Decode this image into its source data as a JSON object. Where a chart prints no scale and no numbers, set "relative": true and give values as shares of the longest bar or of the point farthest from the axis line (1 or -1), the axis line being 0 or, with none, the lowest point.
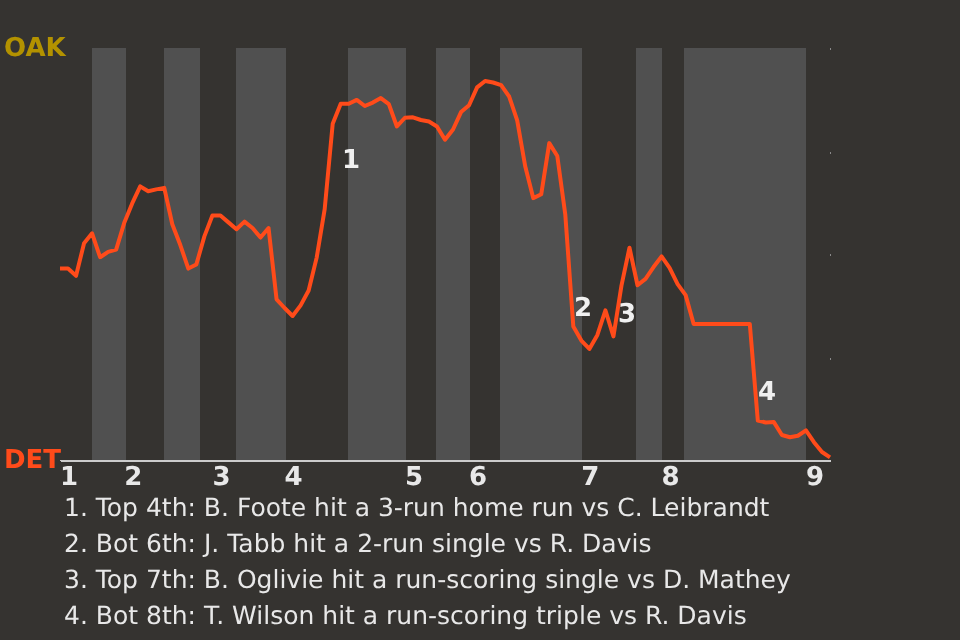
{
  "chart_data": {
    "type": "line",
    "relative": true,
    "categories": [
      null,
      "1",
      null,
      null,
      null,
      null,
      null,
      null,
      null,
      "2",
      null,
      null,
      null,
      null,
      null,
      null,
      null,
      null,
      null,
      null,
      "3",
      null,
      null,
      null,
      null,
      null,
      null,
      null,
      null,
      "4",
      null,
      null,
      null,
      null,
      null,
      null,
      null,
      null,
      null,
      null,
      null,
      null,
      null,
      null,
      "5",
      null,
      null,
      null,
      null,
      null,
      null,
      null,
      "6",
      null,
      null,
      null,
      null,
      null,
      null,
      null,
      null,
      null,
      null,
      null,
      null,
      null,
      "7",
      null,
      null,
      null,
      null,
      null,
      null,
      null,
      null,
      null,
      "8",
      null,
      null,
      null,
      null,
      null,
      null,
      null,
      null,
      null,
      null,
      null,
      null,
      null,
      null,
      null,
      null,
      null,
      "9",
      null,
      null
    ],
    "series": [
      {
        "color": "#ff4b1a",
        "values": [
          0.505,
          0.505,
          0.486,
          0.572,
          0.598,
          0.535,
          0.549,
          0.555,
          0.625,
          0.677,
          0.722,
          0.709,
          0.714,
          0.718,
          0.622,
          0.567,
          0.505,
          0.516,
          0.59,
          0.645,
          0.645,
          0.627,
          0.609,
          0.629,
          0.612,
          0.587,
          0.612,
          0.424,
          0.401,
          0.38,
          0.408,
          0.447,
          0.534,
          0.662,
          0.887,
          0.94,
          0.94,
          0.95,
          0.934,
          0.943,
          0.955,
          0.939,
          0.88,
          0.903,
          0.904,
          0.897,
          0.893,
          0.88,
          0.845,
          0.872,
          0.918,
          0.936,
          0.983,
          1,
          0.996,
          0.989,
          0.959,
          0.896,
          0.775,
          0.691,
          0.701,
          0.836,
          0.802,
          0.647,
          0.352,
          0.315,
          0.293,
          0.33,
          0.395,
          0.326,
          0.46,
          0.56,
          0.461,
          0.478,
          0.509,
          0.537,
          0.507,
          0.464,
          0.435,
          0.359,
          0.359,
          0.359,
          0.359,
          0.359,
          0.359,
          0.359,
          0.359,
          0.104,
          0.099,
          0.1,
          0.066,
          0.06,
          0.064,
          0.078,
          0.047,
          0.021,
          0.007
        ]
      }
    ],
    "grid": "y",
    "annotations": [
      "OAK",
      "DET",
      "1",
      "2",
      "3",
      "4",
      "1. Top 4th: B. Foote hit a 3-run home run vs C. Leibrandt",
      "2. Bot 6th: J. Tabb hit a 2-run single vs R. Davis",
      "3. Top 7th: B. Oglivie hit a run-scoring single vs D. Mathey",
      "4. Bot 8th: T. Wilson hit a run-scoring triple vs R. Davis"
    ]
  }
}
